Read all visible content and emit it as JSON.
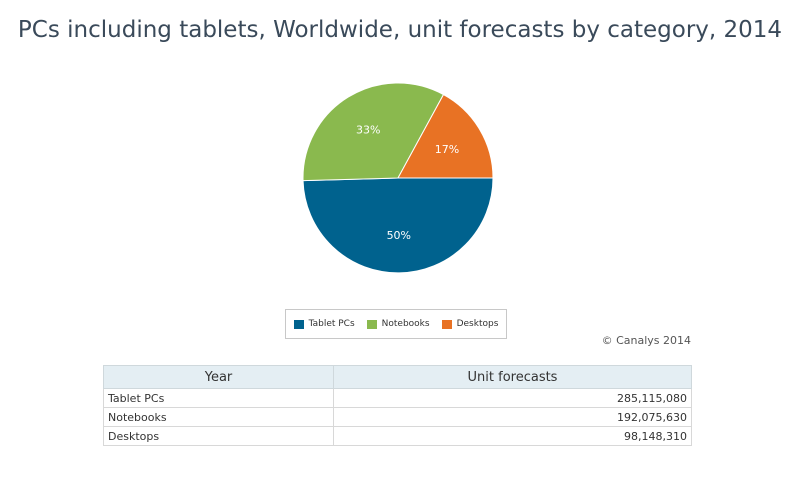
{
  "chart_data": {
    "type": "pie",
    "title": "PCs including tablets, Worldwide, unit forecasts by category, 2014",
    "categories": [
      "Tablet PCs",
      "Notebooks",
      "Desktops"
    ],
    "values": [
      285115080,
      192075630,
      98148310
    ],
    "percent_labels": [
      "50%",
      "33%",
      "17%"
    ],
    "colors": [
      "#00628e",
      "#8ab94e",
      "#e87224"
    ],
    "legend_position": "bottom-center"
  },
  "credit": "© Canalys 2014",
  "table": {
    "headers": [
      "Year",
      "Unit forecasts"
    ],
    "rows": [
      {
        "label": "Tablet PCs",
        "value": "285,115,080"
      },
      {
        "label": "Notebooks",
        "value": "192,075,630"
      },
      {
        "label": "Desktops",
        "value": "98,148,310"
      }
    ]
  }
}
